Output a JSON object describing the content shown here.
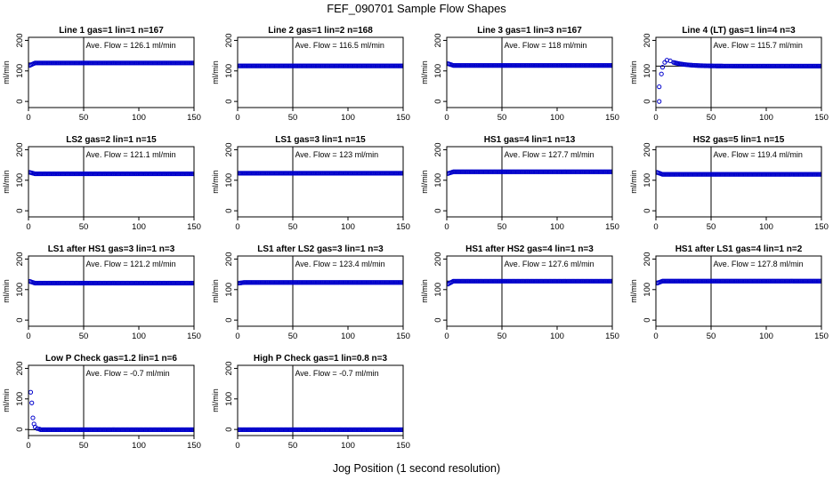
{
  "figure": {
    "title": "FEF_090701  Sample Flow Shapes",
    "xlabel": "Jog Position (1 second resolution)"
  },
  "chart_data": [
    {
      "type": "scatter",
      "title": "Line 1 gas=1 lin=1 n=167",
      "ylabel": "ml/min",
      "xlim": [
        0,
        150
      ],
      "ylim": [
        -20,
        210
      ],
      "xticks": [
        0,
        50,
        100,
        150
      ],
      "yticks": [
        0,
        100,
        200
      ],
      "annotation": "Ave. Flow =  126.1  ml/min",
      "hline": 126.1,
      "vline": 50,
      "marker_color": "#0000cc",
      "shape": "flat",
      "level": 126.1,
      "start": 118
    },
    {
      "type": "scatter",
      "title": "Line 2 gas=1 lin=2 n=168",
      "ylabel": "ml/min",
      "xlim": [
        0,
        150
      ],
      "ylim": [
        -20,
        210
      ],
      "xticks": [
        0,
        50,
        100,
        150
      ],
      "yticks": [
        0,
        100,
        200
      ],
      "annotation": "Ave. Flow =  116.5  ml/min",
      "hline": 116.5,
      "vline": 50,
      "marker_color": "#0000cc",
      "shape": "flat",
      "level": 116.5,
      "start": 116.5
    },
    {
      "type": "scatter",
      "title": "Line 3 gas=1 lin=3 n=167",
      "ylabel": "ml/min",
      "xlim": [
        0,
        150
      ],
      "ylim": [
        -20,
        210
      ],
      "xticks": [
        0,
        50,
        100,
        150
      ],
      "yticks": [
        0,
        100,
        200
      ],
      "annotation": "Ave. Flow =  118  ml/min",
      "hline": 118,
      "vline": 50,
      "marker_color": "#0000cc",
      "shape": "flat",
      "level": 118,
      "start": 124
    },
    {
      "type": "scatter",
      "title": "Line 4 (LT) gas=1 lin=4 n=3",
      "ylabel": "ml/min",
      "xlim": [
        0,
        150
      ],
      "ylim": [
        -20,
        210
      ],
      "xticks": [
        0,
        50,
        100,
        150
      ],
      "yticks": [
        0,
        100,
        200
      ],
      "annotation": "Ave. Flow =  115.7  ml/min",
      "hline": 115.7,
      "vline": 50,
      "marker_color": "#0000cc",
      "shape": "rise",
      "level": 115.7,
      "early": [
        [
          3,
          0
        ],
        [
          3,
          48
        ],
        [
          5,
          90
        ],
        [
          6,
          112
        ],
        [
          8,
          128
        ],
        [
          10,
          135
        ],
        [
          13,
          133
        ],
        [
          16,
          128
        ]
      ]
    },
    {
      "type": "scatter",
      "title": "LS2 gas=2 lin=1 n=15",
      "ylabel": "ml/min",
      "xlim": [
        0,
        150
      ],
      "ylim": [
        -20,
        210
      ],
      "xticks": [
        0,
        50,
        100,
        150
      ],
      "yticks": [
        0,
        100,
        200
      ],
      "annotation": "Ave. Flow =  121.1  ml/min",
      "hline": 121.1,
      "vline": 50,
      "marker_color": "#0000cc",
      "shape": "flat",
      "level": 121.1,
      "start": 126
    },
    {
      "type": "scatter",
      "title": "LS1 gas=3 lin=1 n=15",
      "ylabel": "ml/min",
      "xlim": [
        0,
        150
      ],
      "ylim": [
        -20,
        210
      ],
      "xticks": [
        0,
        50,
        100,
        150
      ],
      "yticks": [
        0,
        100,
        200
      ],
      "annotation": "Ave. Flow =  123  ml/min",
      "hline": 123,
      "vline": 50,
      "marker_color": "#0000cc",
      "shape": "flat",
      "level": 123,
      "start": 123
    },
    {
      "type": "scatter",
      "title": "HS1 gas=4 lin=1 n=13",
      "ylabel": "ml/min",
      "xlim": [
        0,
        150
      ],
      "ylim": [
        -20,
        210
      ],
      "xticks": [
        0,
        50,
        100,
        150
      ],
      "yticks": [
        0,
        100,
        200
      ],
      "annotation": "Ave. Flow =  127.7  ml/min",
      "hline": 127.7,
      "vline": 50,
      "marker_color": "#0000cc",
      "shape": "flat",
      "level": 127.7,
      "start": 122
    },
    {
      "type": "scatter",
      "title": "HS2 gas=5 lin=1 n=15",
      "ylabel": "ml/min",
      "xlim": [
        0,
        150
      ],
      "ylim": [
        -20,
        210
      ],
      "xticks": [
        0,
        50,
        100,
        150
      ],
      "yticks": [
        0,
        100,
        200
      ],
      "annotation": "Ave. Flow =  119.4  ml/min",
      "hline": 119.4,
      "vline": 50,
      "marker_color": "#0000cc",
      "shape": "flat",
      "level": 119.4,
      "start": 126
    },
    {
      "type": "scatter",
      "title": "LS1 after HS1 gas=3 lin=1 n=3",
      "ylabel": "ml/min",
      "xlim": [
        0,
        150
      ],
      "ylim": [
        -20,
        210
      ],
      "xticks": [
        0,
        50,
        100,
        150
      ],
      "yticks": [
        0,
        100,
        200
      ],
      "annotation": "Ave. Flow =  121.2  ml/min",
      "hline": 121.2,
      "vline": 50,
      "marker_color": "#0000cc",
      "shape": "flat",
      "level": 121.2,
      "start": 127
    },
    {
      "type": "scatter",
      "title": "LS1 after LS2 gas=3 lin=1 n=3",
      "ylabel": "ml/min",
      "xlim": [
        0,
        150
      ],
      "ylim": [
        -20,
        210
      ],
      "xticks": [
        0,
        50,
        100,
        150
      ],
      "yticks": [
        0,
        100,
        200
      ],
      "annotation": "Ave. Flow =  123.4  ml/min",
      "hline": 123.4,
      "vline": 50,
      "marker_color": "#0000cc",
      "shape": "flat",
      "level": 123.4,
      "start": 121
    },
    {
      "type": "scatter",
      "title": "HS1 after HS2 gas=4 lin=1 n=3",
      "ylabel": "ml/min",
      "xlim": [
        0,
        150
      ],
      "ylim": [
        -20,
        210
      ],
      "xticks": [
        0,
        50,
        100,
        150
      ],
      "yticks": [
        0,
        100,
        200
      ],
      "annotation": "Ave. Flow =  127.6  ml/min",
      "hline": 127.6,
      "vline": 50,
      "marker_color": "#0000cc",
      "shape": "flat",
      "level": 127.6,
      "start": 118
    },
    {
      "type": "scatter",
      "title": "HS1 after LS1 gas=4 lin=1 n=2",
      "ylabel": "ml/min",
      "xlim": [
        0,
        150
      ],
      "ylim": [
        -20,
        210
      ],
      "xticks": [
        0,
        50,
        100,
        150
      ],
      "yticks": [
        0,
        100,
        200
      ],
      "annotation": "Ave. Flow =  127.8  ml/min",
      "hline": 127.8,
      "vline": 50,
      "marker_color": "#0000cc",
      "shape": "flat",
      "level": 127.8,
      "start": 121
    },
    {
      "type": "scatter",
      "title": "Low P Check gas=1.2 lin=1 n=6",
      "ylabel": "ml/min",
      "xlim": [
        0,
        150
      ],
      "ylim": [
        -20,
        210
      ],
      "xticks": [
        0,
        50,
        100,
        150
      ],
      "yticks": [
        0,
        100,
        200
      ],
      "annotation": "Ave. Flow =  -0.7  ml/min",
      "hline": -0.7,
      "vline": 50,
      "marker_color": "#0000cc",
      "shape": "decay",
      "level": -0.7,
      "early": [
        [
          2,
          122
        ],
        [
          3,
          87
        ],
        [
          4,
          38
        ],
        [
          5,
          18
        ],
        [
          6,
          8
        ],
        [
          8,
          3
        ],
        [
          10,
          1
        ]
      ]
    },
    {
      "type": "scatter",
      "title": "High P Check gas=1 lin=0.8 n=3",
      "ylabel": "ml/min",
      "xlim": [
        0,
        150
      ],
      "ylim": [
        -20,
        210
      ],
      "xticks": [
        0,
        50,
        100,
        150
      ],
      "yticks": [
        0,
        100,
        200
      ],
      "annotation": "Ave. Flow =  -0.7  ml/min",
      "hline": -0.7,
      "vline": 50,
      "marker_color": "#0000cc",
      "shape": "flat",
      "level": -0.7,
      "start": -0.7
    }
  ]
}
